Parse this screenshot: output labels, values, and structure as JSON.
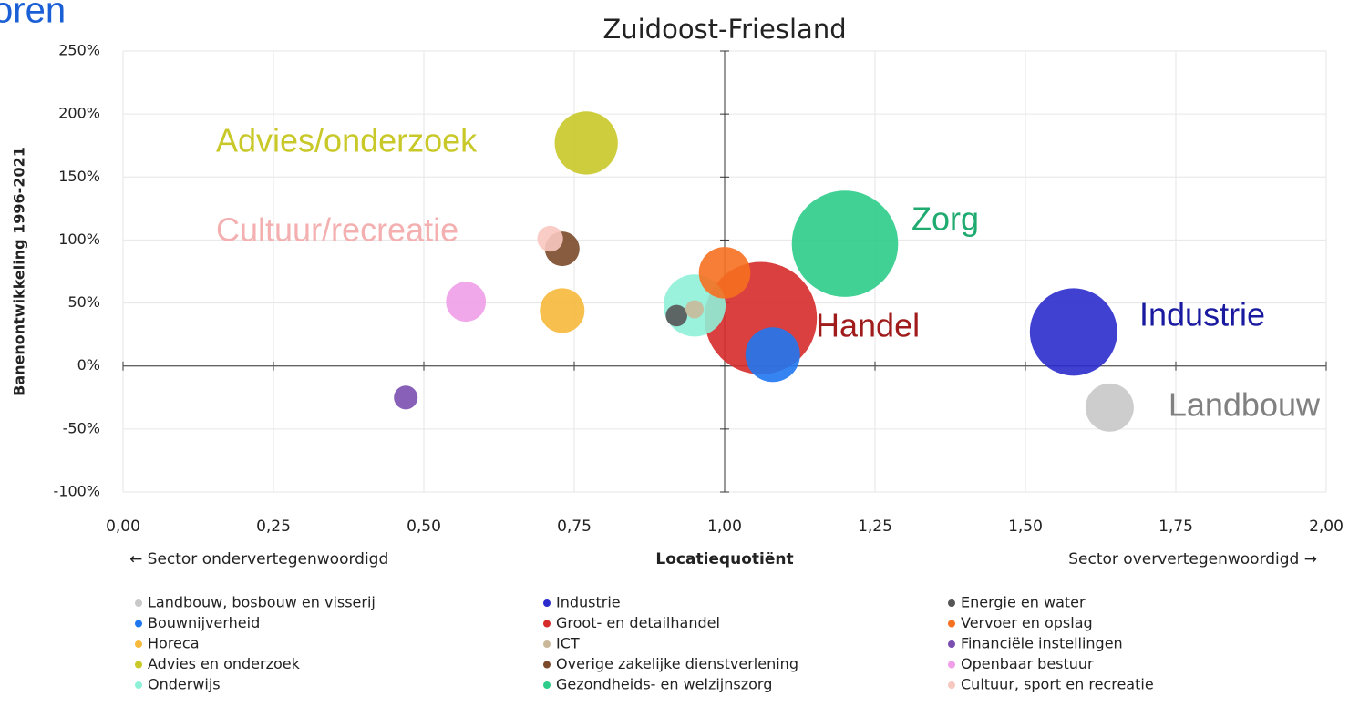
{
  "corner_text": "oren",
  "chart_data": {
    "type": "bubble",
    "title": "Zuidoost-Friesland",
    "xlabel": "Locatiequotiënt",
    "ylabel": "Banenontwikkeling 1996-2021",
    "xlabel_left": "← Sector ondervertegenwoordigd",
    "xlabel_right": "Sector oververtegenwoordigd →",
    "xlim": [
      0,
      2
    ],
    "ylim": [
      -100,
      250
    ],
    "xticks": [
      {
        "value": 0,
        "label": "0,00"
      },
      {
        "value": 0.25,
        "label": "0,25"
      },
      {
        "value": 0.5,
        "label": "0,50"
      },
      {
        "value": 0.75,
        "label": "0,75"
      },
      {
        "value": 1,
        "label": "1,00"
      },
      {
        "value": 1.25,
        "label": "1,25"
      },
      {
        "value": 1.5,
        "label": "1,50"
      },
      {
        "value": 1.75,
        "label": "1,75"
      },
      {
        "value": 2,
        "label": "2,00"
      }
    ],
    "yticks": [
      {
        "value": -100,
        "label": "-100%"
      },
      {
        "value": -50,
        "label": "-50%"
      },
      {
        "value": 0,
        "label": "0%"
      },
      {
        "value": 50,
        "label": "50%"
      },
      {
        "value": 100,
        "label": "100%"
      },
      {
        "value": 150,
        "label": "150%"
      },
      {
        "value": 200,
        "label": "200%"
      },
      {
        "value": 250,
        "label": "250%"
      }
    ],
    "grid": true,
    "x_axis_crosses_y": 0,
    "y_axis_crosses_x": 1,
    "legend": "bottom",
    "series": [
      {
        "name": "Landbouw, bosbouw en visserij",
        "color": "#c8c8c8",
        "x": 1.64,
        "y": -33,
        "size": 7
      },
      {
        "name": "Industrie",
        "color": "#2b2bcc",
        "x": 1.58,
        "y": 27,
        "size": 23
      },
      {
        "name": "Energie en water",
        "color": "#555555",
        "x": 0.92,
        "y": 40,
        "size": 1.4
      },
      {
        "name": "Bouwnijverheid",
        "color": "#1f77f0",
        "x": 1.08,
        "y": 9,
        "size": 9
      },
      {
        "name": "Groot- en detailhandel",
        "color": "#d62b2b",
        "x": 1.06,
        "y": 38,
        "size": 38
      },
      {
        "name": "Vervoer en opslag",
        "color": "#f57020",
        "x": 1.0,
        "y": 74,
        "size": 8
      },
      {
        "name": "Horeca",
        "color": "#f6b93b",
        "x": 0.73,
        "y": 44,
        "size": 6
      },
      {
        "name": "ICT",
        "color": "#c9b99a",
        "x": 0.95,
        "y": 45,
        "size": 1
      },
      {
        "name": "Financiële instellingen",
        "color": "#7b4fb0",
        "x": 0.47,
        "y": -25,
        "size": 1.7
      },
      {
        "name": "Advies en onderzoek",
        "color": "#c8c828",
        "x": 0.77,
        "y": 177,
        "size": 12
      },
      {
        "name": "Overige zakelijke dienstverlening",
        "color": "#7a4a2a",
        "x": 0.73,
        "y": 93,
        "size": 3.6
      },
      {
        "name": "Openbaar bestuur",
        "color": "#f09ee8",
        "x": 0.57,
        "y": 51,
        "size": 4.8
      },
      {
        "name": "Onderwijs",
        "color": "#8ff0d8",
        "x": 0.95,
        "y": 48,
        "size": 11.6
      },
      {
        "name": "Gezondheids- en welzijnszorg",
        "color": "#2ecc8a",
        "x": 1.2,
        "y": 97,
        "size": 34
      },
      {
        "name": "Cultuur, sport en recreatie",
        "color": "#f8c8c0",
        "x": 0.71,
        "y": 101,
        "size": 2
      }
    ],
    "annotations": [
      {
        "text": "Advies/onderzoek",
        "color": "#c8c828"
      },
      {
        "text": "Cultuur/recreatie",
        "color": "#f4b0b0"
      },
      {
        "text": "Zorg",
        "color": "#1faa6f"
      },
      {
        "text": "Handel",
        "color": "#a01c1c"
      },
      {
        "text": "Industrie",
        "color": "#1a1aa0"
      },
      {
        "text": "Landbouw",
        "color": "#808080"
      }
    ]
  }
}
